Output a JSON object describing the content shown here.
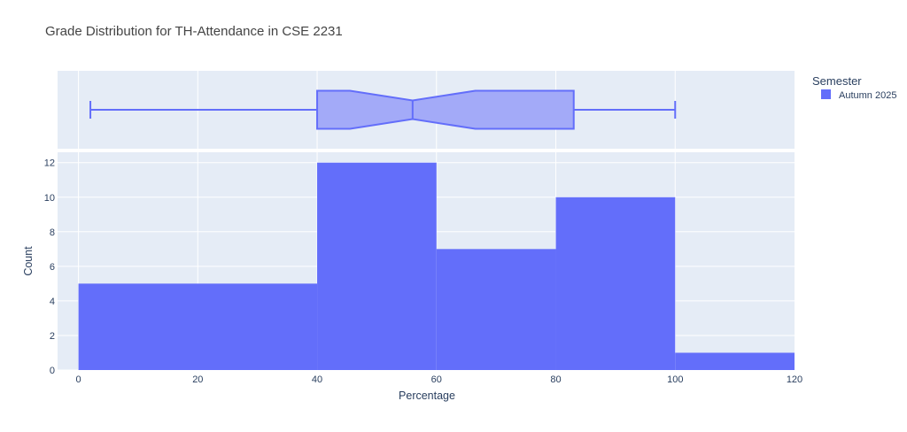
{
  "chart_data": [
    {
      "type": "box",
      "orientation": "horizontal",
      "notched": true,
      "series": [
        {
          "name": "Autumn 2025",
          "min": 2,
          "q1": 40,
          "median": 56,
          "q3": 83,
          "max": 100,
          "notch_low": 45.5,
          "notch_high": 66.5
        }
      ],
      "xlim": [
        -3.5,
        120
      ],
      "grid": true
    },
    {
      "type": "bar",
      "subtype": "histogram",
      "title": "Grade Distribution for TH-Attendance in CSE 2231",
      "xlabel": "Percentage",
      "ylabel": "Count",
      "bins": [
        {
          "start": 0,
          "end": 40,
          "count": 5
        },
        {
          "start": 40,
          "end": 60,
          "count": 12
        },
        {
          "start": 60,
          "end": 80,
          "count": 7
        },
        {
          "start": 80,
          "end": 100,
          "count": 10
        },
        {
          "start": 100,
          "end": 120,
          "count": 1
        }
      ],
      "series": [
        {
          "name": "Autumn 2025"
        }
      ],
      "xlim": [
        -3.5,
        120
      ],
      "ylim": [
        0,
        12.6
      ],
      "xticks": [
        0,
        20,
        40,
        60,
        80,
        100,
        120
      ],
      "yticks": [
        0,
        2,
        4,
        6,
        8,
        10,
        12
      ],
      "grid": true,
      "legend": {
        "title": "Semester",
        "position": "top-right"
      }
    }
  ],
  "colors": {
    "series": "#636efa",
    "box_fill": "#a3aaf8",
    "plot_bg": "#e5ecf6",
    "grid": "#ffffff"
  }
}
